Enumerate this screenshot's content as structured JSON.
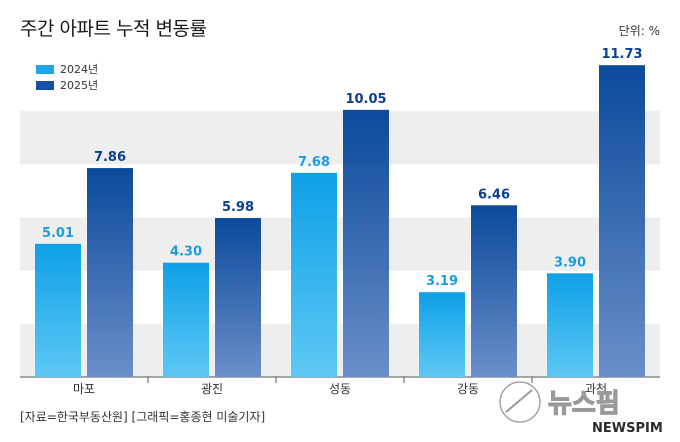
{
  "title": "주간 아파트 누적 변동률",
  "unit_label": "단위: %",
  "source_text": "[자료=한국부동산원] [그래픽=홍종현 미술기자]",
  "watermark": {
    "text": "뉴스핌",
    "subtext": "NEWSPIM"
  },
  "colors": {
    "series_2024": "#1ea5e8",
    "series_2025": "#1552a3",
    "band": "#eeeeee"
  },
  "chart_data": {
    "type": "bar",
    "title": "주간 아파트 누적 변동률",
    "xlabel": "",
    "ylabel": "",
    "ylim": [
      0,
      12
    ],
    "grid": "alternating-bands",
    "legend_position": "top-left",
    "categories": [
      "마포",
      "광진",
      "성동",
      "강동",
      "과천"
    ],
    "series": [
      {
        "name": "2024년",
        "values": [
          5.01,
          4.3,
          7.68,
          3.19,
          3.9
        ]
      },
      {
        "name": "2025년",
        "values": [
          7.86,
          5.98,
          10.05,
          6.46,
          11.73
        ]
      }
    ]
  }
}
